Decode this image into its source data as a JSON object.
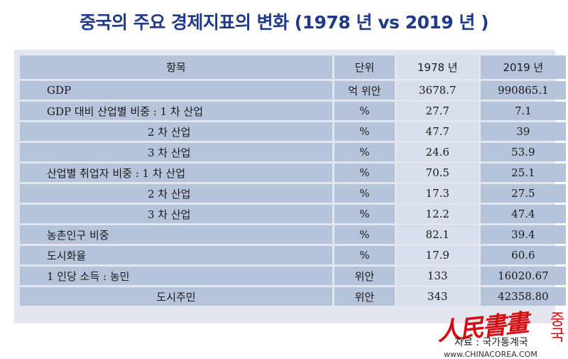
{
  "title": "중국의 주요 경제지표의 변화 (1978 년 vs 2019 년 )",
  "table": {
    "headers": [
      "항목",
      "단위",
      "1978 년",
      "2019 년"
    ],
    "rows": [
      {
        "item": "GDP",
        "unit": "억 위안",
        "y1978": "3678.7",
        "y2019": "990865.1"
      },
      {
        "item": "GDP 대비 산업별 비중 : 1 차 산업",
        "unit": "%",
        "y1978": "27.7",
        "y2019": "7.1"
      },
      {
        "item": "2 차 산업",
        "unit": "%",
        "y1978": "47.7",
        "y2019": "39"
      },
      {
        "item": "3 차 산업",
        "unit": "%",
        "y1978": "24.6",
        "y2019": "53.9"
      },
      {
        "item": "산업별 취업자 비중 : 1 차 산업",
        "unit": "%",
        "y1978": "70.5",
        "y2019": "25.1"
      },
      {
        "item": "2 차 산업",
        "unit": "%",
        "y1978": "17.3",
        "y2019": "27.5"
      },
      {
        "item": "3 차 산업",
        "unit": "%",
        "y1978": "12.2",
        "y2019": "47.4"
      },
      {
        "item": "농촌인구 비중",
        "unit": "%",
        "y1978": "82.1",
        "y2019": "39.4"
      },
      {
        "item": "도시화율",
        "unit": "%",
        "y1978": "17.9",
        "y2019": "60.6"
      },
      {
        "item": "1 인당 소득 : 농민",
        "unit": "위안",
        "y1978": "133",
        "y2019": "16020.67"
      },
      {
        "item": "도시주민",
        "unit": "위안",
        "y1978": "343",
        "y2019": "42358.80"
      }
    ]
  },
  "source": "자료 : 국가통계국",
  "watermark": {
    "logo_text": "人民書畫",
    "logo_side": "중국",
    "url": "www.CHINACOREA.COM"
  },
  "colors": {
    "title": "#1f3a8a",
    "cell_dark": "#b6c4db",
    "cell_light": "#d7dfec",
    "frame": "#e3e6ee",
    "logo": "#d40f14"
  }
}
